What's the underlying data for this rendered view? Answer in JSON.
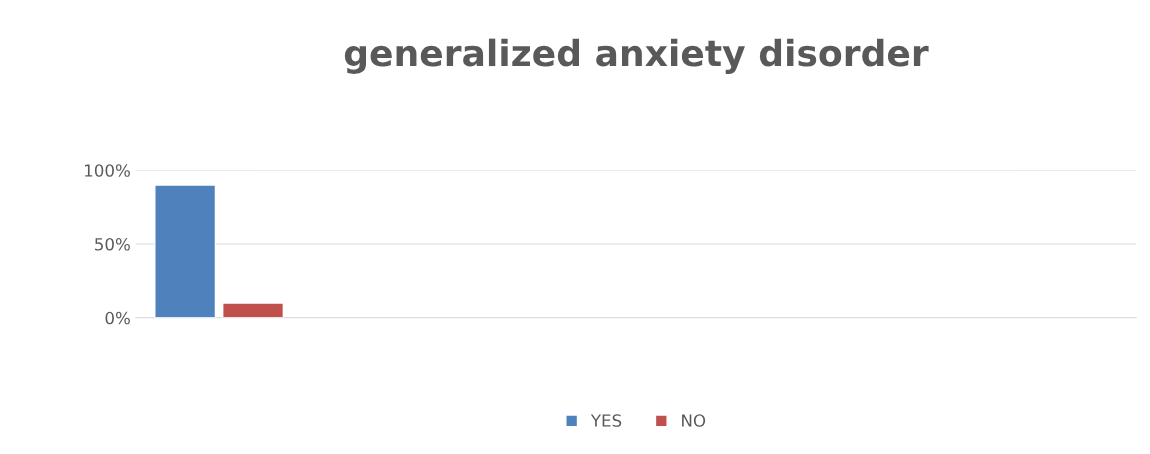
{
  "chart_data": {
    "type": "bar",
    "title": "generalized anxiety disorder",
    "categories": [
      null,
      null,
      null,
      null,
      null,
      null
    ],
    "series": [
      {
        "name": "YES",
        "color": "#4f81bd",
        "values": [
          90,
          null,
          null,
          null,
          null,
          null
        ]
      },
      {
        "name": "NO",
        "color": "#c0504d",
        "values": [
          10,
          null,
          null,
          null,
          null,
          null
        ]
      }
    ],
    "ylim": [
      0,
      100
    ],
    "yticks": [
      {
        "value": 0,
        "label": "0%"
      },
      {
        "value": 50,
        "label": "50%"
      },
      {
        "value": 100,
        "label": "100%"
      }
    ],
    "grid": "y",
    "legend": "bottom"
  }
}
